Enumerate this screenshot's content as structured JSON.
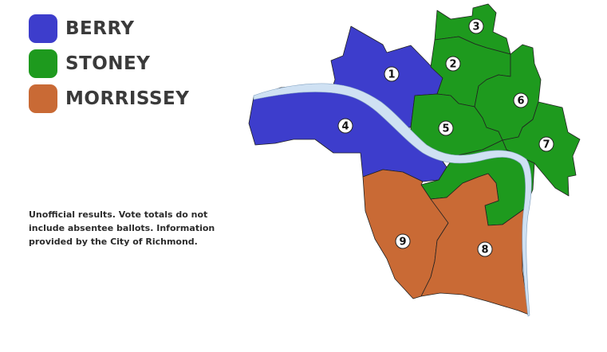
{
  "legend": [
    {
      "label": "BERRY",
      "color": "#3d3dcc"
    },
    {
      "label": "STONEY",
      "color": "#1e9a1e"
    },
    {
      "label": "MORRISSEY",
      "color": "#c96a35"
    }
  ],
  "note": "Unofficial results. Vote totals do not include absentee ballots. Information provided by the City of Richmond.",
  "map": {
    "river_color": "#cfe1f3",
    "districts": [
      {
        "number": "1",
        "winner": "BERRY"
      },
      {
        "number": "2",
        "winner": "STONEY"
      },
      {
        "number": "3",
        "winner": "STONEY"
      },
      {
        "number": "4",
        "winner": "BERRY"
      },
      {
        "number": "5",
        "winner": "STONEY"
      },
      {
        "number": "6",
        "winner": "STONEY"
      },
      {
        "number": "7",
        "winner": "STONEY"
      },
      {
        "number": "8",
        "winner": "MORRISSEY"
      },
      {
        "number": "9",
        "winner": "MORRISSEY"
      }
    ]
  }
}
